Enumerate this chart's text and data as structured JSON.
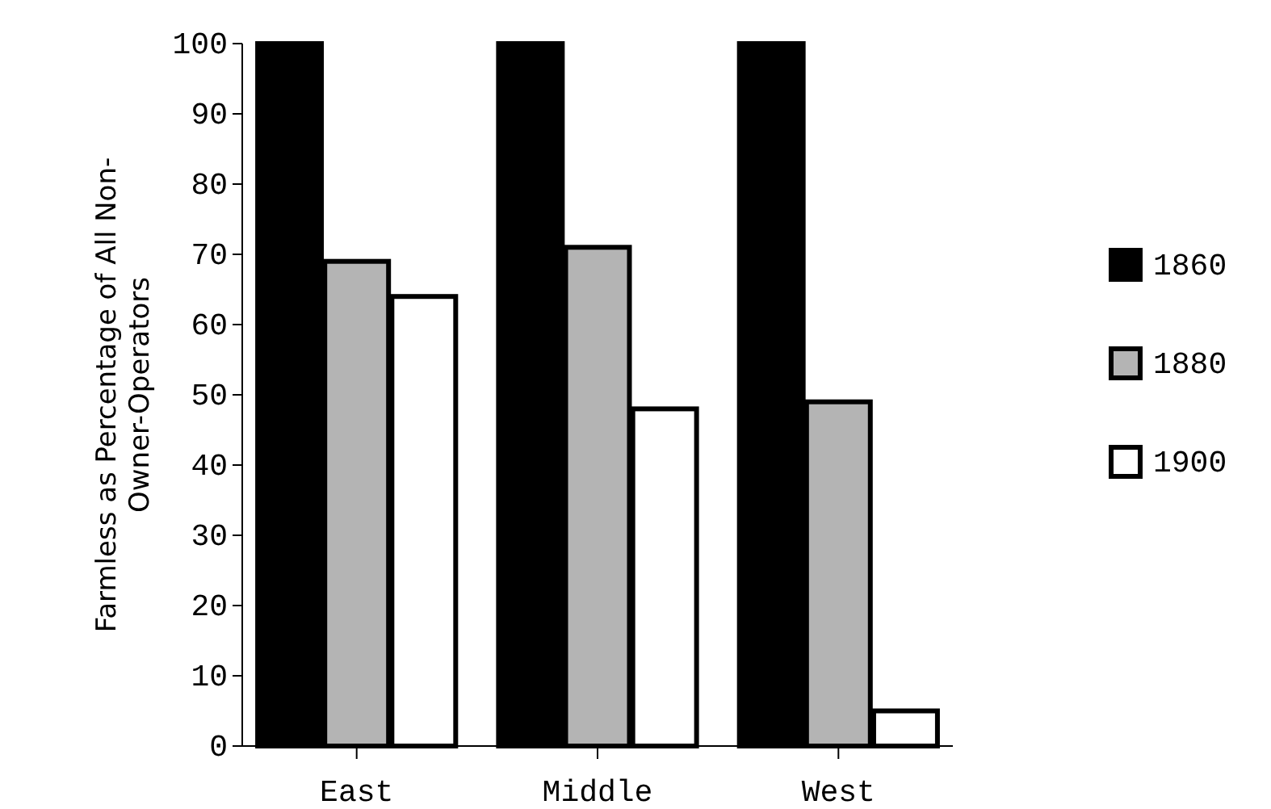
{
  "chart_data": {
    "type": "bar",
    "ylabel": "Farmless as Percentage of All Non-Owner-Operators",
    "categories": [
      "East",
      "Middle",
      "West"
    ],
    "series": [
      {
        "name": "1860",
        "color": "#000000",
        "values": [
          100,
          100,
          100
        ]
      },
      {
        "name": "1880",
        "color": "#b4b4b4",
        "values": [
          69,
          71,
          49
        ]
      },
      {
        "name": "1900",
        "color": "#ffffff",
        "values": [
          64,
          48,
          5
        ]
      }
    ],
    "ylim": [
      0,
      100
    ],
    "yticks": [
      0,
      10,
      20,
      30,
      40,
      50,
      60,
      70,
      80,
      90,
      100
    ],
    "legend": "right"
  }
}
